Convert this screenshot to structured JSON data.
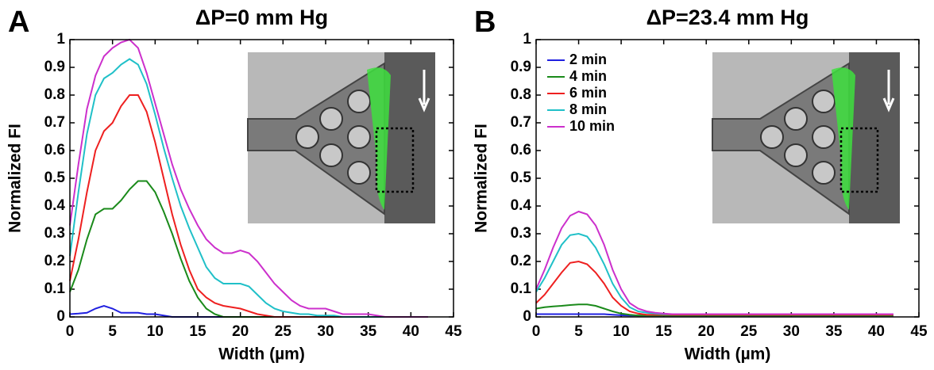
{
  "chart_data": [
    {
      "type": "line",
      "panel_label": "A",
      "title": "ΔP=0 mm Hg",
      "x_label": "Width (µm)",
      "y_label": "Normalized FI",
      "xlim": [
        0,
        45
      ],
      "ylim": [
        0,
        1
      ],
      "xticks": [
        0,
        5,
        10,
        15,
        20,
        25,
        30,
        35,
        40,
        45
      ],
      "yticks": [
        0,
        0.1,
        0.2,
        0.3,
        0.4,
        0.5,
        0.6,
        0.7,
        0.8,
        0.9,
        1
      ],
      "x": [
        0,
        1,
        2,
        3,
        4,
        5,
        6,
        7,
        8,
        9,
        10,
        11,
        12,
        13,
        14,
        15,
        16,
        17,
        18,
        19,
        20,
        21,
        22,
        23,
        24,
        25,
        26,
        27,
        28,
        29,
        30,
        31,
        32,
        33,
        34,
        35,
        36,
        37,
        38,
        39,
        40,
        41,
        42
      ],
      "series": [
        {
          "color": "#2020e0",
          "values": [
            0.01,
            0.012,
            0.015,
            0.03,
            0.04,
            0.03,
            0.015,
            0.015,
            0.015,
            0.01,
            0.01,
            0.005,
            0,
            0,
            0,
            0,
            0,
            0,
            0,
            0,
            0,
            0,
            0,
            0,
            0,
            0,
            0,
            0,
            0,
            0,
            0,
            0,
            0,
            0,
            0,
            0,
            0,
            0,
            0,
            0,
            0,
            0,
            0
          ]
        },
        {
          "color": "#1a8a1a",
          "values": [
            0.09,
            0.17,
            0.28,
            0.37,
            0.39,
            0.39,
            0.42,
            0.46,
            0.49,
            0.49,
            0.45,
            0.38,
            0.3,
            0.21,
            0.13,
            0.07,
            0.03,
            0.01,
            0,
            0,
            0,
            0,
            0,
            0,
            0,
            0,
            0,
            0,
            0,
            0,
            0,
            0,
            0,
            0,
            0,
            0,
            0,
            0,
            0,
            0,
            0,
            0,
            0
          ]
        },
        {
          "color": "#ee2020",
          "values": [
            0.13,
            0.28,
            0.45,
            0.6,
            0.67,
            0.7,
            0.76,
            0.8,
            0.8,
            0.74,
            0.63,
            0.5,
            0.37,
            0.26,
            0.17,
            0.1,
            0.07,
            0.05,
            0.04,
            0.035,
            0.03,
            0.02,
            0.01,
            0.005,
            0,
            0,
            0,
            0,
            0,
            0,
            0,
            0,
            0,
            0,
            0,
            0,
            0,
            0,
            0,
            0,
            0,
            0,
            0
          ]
        },
        {
          "color": "#20c0c8",
          "values": [
            0.22,
            0.45,
            0.66,
            0.8,
            0.86,
            0.88,
            0.91,
            0.93,
            0.91,
            0.84,
            0.73,
            0.61,
            0.5,
            0.4,
            0.32,
            0.25,
            0.18,
            0.14,
            0.12,
            0.12,
            0.12,
            0.11,
            0.08,
            0.05,
            0.03,
            0.02,
            0.015,
            0.01,
            0.01,
            0.005,
            0.005,
            0.005,
            0,
            0,
            0,
            0,
            0,
            0,
            0,
            0,
            0,
            0,
            0
          ]
        },
        {
          "color": "#cc30cc",
          "values": [
            0.33,
            0.55,
            0.75,
            0.87,
            0.94,
            0.97,
            0.99,
            1.0,
            0.97,
            0.88,
            0.77,
            0.66,
            0.55,
            0.46,
            0.39,
            0.33,
            0.28,
            0.25,
            0.23,
            0.23,
            0.24,
            0.23,
            0.2,
            0.16,
            0.12,
            0.09,
            0.06,
            0.04,
            0.03,
            0.03,
            0.03,
            0.02,
            0.01,
            0.01,
            0.01,
            0.01,
            0.005,
            0,
            0,
            0,
            0,
            0,
            0
          ]
        }
      ]
    },
    {
      "type": "line",
      "panel_label": "B",
      "title": "ΔP=23.4 mm Hg",
      "x_label": "Width (µm)",
      "y_label": "Normalized FI",
      "xlim": [
        0,
        45
      ],
      "ylim": [
        0,
        1
      ],
      "xticks": [
        0,
        5,
        10,
        15,
        20,
        25,
        30,
        35,
        40,
        45
      ],
      "yticks": [
        0,
        0.1,
        0.2,
        0.3,
        0.4,
        0.5,
        0.6,
        0.7,
        0.8,
        0.9,
        1
      ],
      "legend": "upper left",
      "x": [
        0,
        1,
        2,
        3,
        4,
        5,
        6,
        7,
        8,
        9,
        10,
        11,
        12,
        13,
        14,
        15,
        16,
        17,
        18,
        19,
        20,
        21,
        22,
        23,
        24,
        25,
        26,
        27,
        28,
        29,
        30,
        31,
        32,
        33,
        34,
        35,
        36,
        37,
        38,
        39,
        40,
        41,
        42
      ],
      "series": [
        {
          "name": "2 min",
          "color": "#2020e0",
          "values": [
            0.01,
            0.01,
            0.01,
            0.01,
            0.01,
            0.01,
            0.01,
            0.01,
            0.01,
            0.008,
            0.006,
            0.005,
            0.005,
            0.005,
            0.005,
            0.005,
            0.005,
            0.005,
            0.005,
            0.005,
            0.005,
            0.005,
            0.005,
            0.005,
            0.005,
            0.005,
            0.005,
            0.005,
            0.005,
            0.005,
            0.005,
            0.005,
            0.005,
            0.005,
            0.005,
            0.005,
            0.005,
            0.005,
            0.005,
            0.005,
            0.005,
            0.005,
            0.005
          ]
        },
        {
          "name": "4 min",
          "color": "#1a8a1a",
          "values": [
            0.03,
            0.035,
            0.038,
            0.04,
            0.043,
            0.045,
            0.045,
            0.04,
            0.03,
            0.02,
            0.012,
            0.008,
            0.005,
            0.005,
            0.005,
            0.005,
            0.005,
            0.005,
            0.005,
            0.005,
            0.005,
            0.005,
            0.005,
            0.005,
            0.005,
            0.005,
            0.005,
            0.005,
            0.005,
            0.005,
            0.005,
            0.005,
            0.005,
            0.005,
            0.005,
            0.005,
            0.005,
            0.005,
            0.005,
            0.005,
            0.005,
            0.005,
            0.005
          ]
        },
        {
          "name": "6 min",
          "color": "#ee2020",
          "values": [
            0.05,
            0.08,
            0.12,
            0.16,
            0.195,
            0.2,
            0.19,
            0.16,
            0.12,
            0.07,
            0.04,
            0.02,
            0.012,
            0.008,
            0.008,
            0.008,
            0.008,
            0.008,
            0.008,
            0.008,
            0.008,
            0.008,
            0.008,
            0.008,
            0.008,
            0.008,
            0.008,
            0.008,
            0.008,
            0.008,
            0.008,
            0.008,
            0.008,
            0.008,
            0.008,
            0.008,
            0.008,
            0.008,
            0.008,
            0.008,
            0.008,
            0.008,
            0.008
          ]
        },
        {
          "name": "8 min",
          "color": "#20c0c8",
          "values": [
            0.09,
            0.14,
            0.2,
            0.26,
            0.295,
            0.3,
            0.29,
            0.25,
            0.19,
            0.12,
            0.07,
            0.035,
            0.02,
            0.015,
            0.012,
            0.01,
            0.01,
            0.01,
            0.01,
            0.01,
            0.01,
            0.01,
            0.01,
            0.01,
            0.01,
            0.01,
            0.01,
            0.01,
            0.01,
            0.01,
            0.01,
            0.01,
            0.01,
            0.01,
            0.01,
            0.01,
            0.01,
            0.01,
            0.01,
            0.01,
            0.01,
            0.01,
            0.01
          ]
        },
        {
          "name": "10 min",
          "color": "#cc30cc",
          "values": [
            0.1,
            0.17,
            0.25,
            0.32,
            0.365,
            0.38,
            0.37,
            0.33,
            0.26,
            0.17,
            0.1,
            0.05,
            0.03,
            0.02,
            0.015,
            0.012,
            0.01,
            0.01,
            0.01,
            0.01,
            0.01,
            0.01,
            0.01,
            0.01,
            0.01,
            0.01,
            0.01,
            0.01,
            0.01,
            0.01,
            0.01,
            0.01,
            0.01,
            0.01,
            0.01,
            0.01,
            0.01,
            0.01,
            0.01,
            0.01,
            0.01,
            0.01,
            0.01
          ]
        }
      ]
    }
  ]
}
